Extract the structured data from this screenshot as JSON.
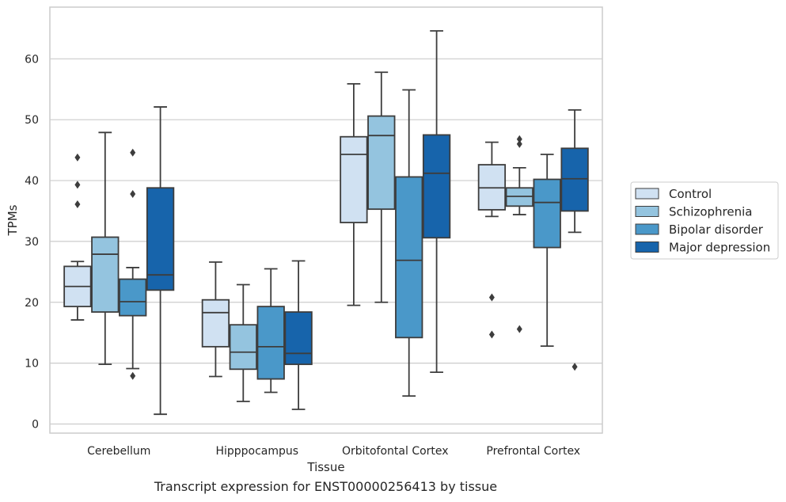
{
  "chart_data": {
    "type": "box",
    "xlabel": "Tissue",
    "ylabel": "TPMs",
    "ylim": [
      -1.5,
      68.5
    ],
    "yticks": [
      0,
      10,
      20,
      30,
      40,
      50,
      60
    ],
    "grid": "horizontal",
    "legend_position": "right",
    "categories": [
      "Cerebellum",
      "Hipppocampus",
      "Orbitofontal Cortex",
      "Prefrontal Cortex"
    ],
    "series": [
      {
        "name": "Control",
        "color": "#d0e1f2",
        "boxes": [
          {
            "whisker_low": 17.1,
            "q1": 19.3,
            "median": 22.6,
            "q3": 25.9,
            "whisker_high": 26.7,
            "outliers": [
              36.1,
              39.3,
              43.8
            ]
          },
          {
            "whisker_low": 7.8,
            "q1": 12.7,
            "median": 18.3,
            "q3": 20.4,
            "whisker_high": 26.6,
            "outliers": []
          },
          {
            "whisker_low": 19.5,
            "q1": 33.1,
            "median": 44.3,
            "q3": 47.2,
            "whisker_high": 55.9,
            "outliers": []
          },
          {
            "whisker_low": 34.1,
            "q1": 35.2,
            "median": 38.8,
            "q3": 42.6,
            "whisker_high": 46.3,
            "outliers": [
              14.7,
              20.8
            ]
          }
        ]
      },
      {
        "name": "Schizophrenia",
        "color": "#94c4df",
        "boxes": [
          {
            "whisker_low": 9.8,
            "q1": 18.4,
            "median": 27.9,
            "q3": 30.7,
            "whisker_high": 47.9,
            "outliers": []
          },
          {
            "whisker_low": 3.7,
            "q1": 9.0,
            "median": 11.8,
            "q3": 16.3,
            "whisker_high": 22.9,
            "outliers": []
          },
          {
            "whisker_low": 20.0,
            "q1": 35.3,
            "median": 47.4,
            "q3": 50.6,
            "whisker_high": 57.8,
            "outliers": []
          },
          {
            "whisker_low": 34.4,
            "q1": 35.8,
            "median": 37.4,
            "q3": 38.8,
            "whisker_high": 42.1,
            "outliers": [
              15.6,
              46.0,
              46.8
            ]
          }
        ]
      },
      {
        "name": "Bipolar disorder",
        "color": "#4a98c9",
        "boxes": [
          {
            "whisker_low": 9.1,
            "q1": 17.8,
            "median": 20.1,
            "q3": 23.8,
            "whisker_high": 25.7,
            "outliers": [
              7.9,
              37.8,
              44.6
            ]
          },
          {
            "whisker_low": 5.2,
            "q1": 7.4,
            "median": 12.7,
            "q3": 19.3,
            "whisker_high": 25.5,
            "outliers": []
          },
          {
            "whisker_low": 4.6,
            "q1": 14.2,
            "median": 26.9,
            "q3": 40.6,
            "whisker_high": 54.9,
            "outliers": []
          },
          {
            "whisker_low": 12.8,
            "q1": 29.0,
            "median": 36.4,
            "q3": 40.2,
            "whisker_high": 44.3,
            "outliers": []
          }
        ]
      },
      {
        "name": "Major depression",
        "color": "#1764ab",
        "boxes": [
          {
            "whisker_low": 1.6,
            "q1": 22.0,
            "median": 24.5,
            "q3": 38.8,
            "whisker_high": 52.1,
            "outliers": []
          },
          {
            "whisker_low": 2.4,
            "q1": 9.8,
            "median": 11.6,
            "q3": 18.4,
            "whisker_high": 26.8,
            "outliers": []
          },
          {
            "whisker_low": 8.5,
            "q1": 30.6,
            "median": 41.2,
            "q3": 47.5,
            "whisker_high": 64.6,
            "outliers": []
          },
          {
            "whisker_low": 31.5,
            "q1": 35.0,
            "median": 40.3,
            "q3": 45.3,
            "whisker_high": 51.6,
            "outliers": [
              9.4
            ]
          }
        ]
      }
    ]
  },
  "caption": "Transcript expression for ENST00000256413 by tissue"
}
